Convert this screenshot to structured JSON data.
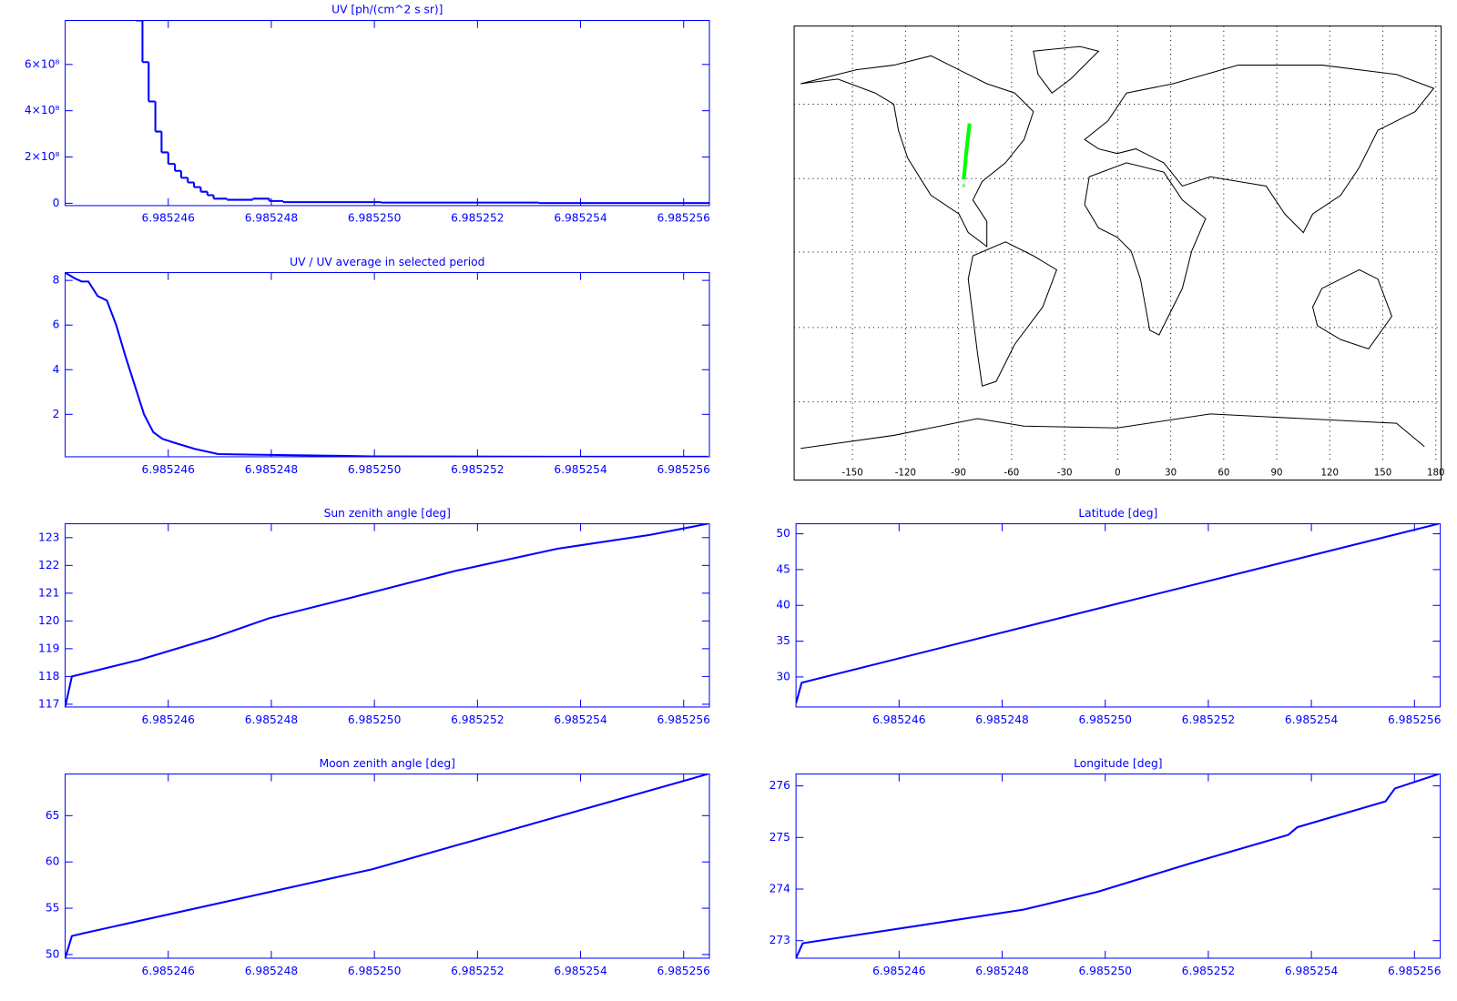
{
  "chart_data": [
    {
      "type": "step",
      "title": "UV [ph/(cm^2 s sr)]",
      "color": "#0000ff",
      "x": [
        6.98524537,
        6.9852455,
        6.98524562,
        6.98524575,
        6.98524587,
        6.985246,
        6.98524613,
        6.98524625,
        6.98524638,
        6.9852465,
        6.98524663,
        6.98524676,
        6.98524688,
        6.98524714,
        6.98524764,
        6.98524796,
        6.98524823,
        6.98525013,
        6.98525319
      ],
      "values": [
        790000000,
        610000000,
        440000000,
        310000000,
        220000000,
        170000000,
        140000000,
        110000000,
        90000000,
        70000000,
        50000000,
        35000000,
        20000000,
        15000000,
        20000000,
        10000000,
        5000000,
        3000000,
        1000000
      ],
      "xlim": [
        6.985244,
        6.9852565
      ],
      "xticks": [
        6.985246,
        6.985248,
        {
          "value": 6.98525,
          "label": "6.985250"
        },
        6.985252,
        6.985254,
        6.985256
      ],
      "ylim": [
        -10000000,
        790000000
      ],
      "yticks": [
        0,
        {
          "value": 200000000,
          "label": "2×10⁸"
        },
        {
          "value": 400000000,
          "label": "4×10⁸"
        },
        {
          "value": 600000000,
          "label": "6×10⁸"
        }
      ]
    },
    {
      "type": "line",
      "title": "UV / UV average in selected period",
      "color": "#0000ff",
      "x": [
        6.985244,
        6.98524418,
        6.98524432,
        6.98524445,
        6.98524463,
        6.98524481,
        6.98524499,
        6.98524517,
        6.98524535,
        6.98524553,
        6.98524571,
        6.98524589,
        6.98524616,
        6.98524652,
        6.98524697,
        6.98524814,
        6.98524995,
        6.98525355,
        6.98525647
      ],
      "values": [
        8.35,
        8.1,
        7.95,
        7.95,
        7.3,
        7.1,
        6.0,
        4.6,
        3.3,
        2.0,
        1.2,
        0.9,
        0.7,
        0.45,
        0.22,
        0.18,
        0.12,
        0.1,
        0.1
      ],
      "xlim": [
        6.985244,
        6.9852565
      ],
      "xticks": [
        6.985246,
        6.985248,
        {
          "value": 6.98525,
          "label": "6.985250"
        },
        6.985252,
        6.985254,
        6.985256
      ],
      "ylim": [
        0.1,
        8.35
      ],
      "yticks": [
        2,
        4,
        6,
        8
      ]
    },
    {
      "type": "map",
      "color": "#00ff00",
      "x": [
        -87.05,
        -85.6,
        -83.77
      ],
      "values": [
        29.2,
        40.2,
        51.4
      ],
      "xlim": [
        -183,
        183
      ],
      "xticks": [
        -150,
        -120,
        -90,
        -60,
        -30,
        0,
        30,
        60,
        90,
        120,
        150,
        180
      ],
      "ylim": [
        -90,
        90
      ]
    },
    {
      "type": "line",
      "title": "Sun zenith angle [deg]",
      "color": "#0000ff",
      "x": [
        6.985244,
        6.98524413,
        6.98524544,
        6.98524688,
        6.98524796,
        6.98524968,
        6.98525157,
        6.98525355,
        6.98525535,
        6.98525647
      ],
      "values": [
        116.9,
        118.0,
        118.6,
        119.4,
        120.1,
        120.9,
        121.8,
        122.6,
        123.1,
        123.5
      ],
      "xlim": [
        6.985244,
        6.9852565
      ],
      "xticks": [
        6.985246,
        6.985248,
        {
          "value": 6.98525,
          "label": "6.985250"
        },
        6.985252,
        6.985254,
        6.985256
      ],
      "ylim": [
        116.9,
        123.5
      ],
      "yticks": [
        117,
        118,
        119,
        120,
        121,
        122,
        123
      ]
    },
    {
      "type": "line",
      "title": "Latitude [deg]",
      "color": "#0000ff",
      "x": [
        6.985244,
        6.98524411,
        6.98525022,
        6.98525647
      ],
      "values": [
        26.3,
        29.2,
        40.2,
        51.4
      ],
      "xlim": [
        6.985244,
        6.9852565
      ],
      "xticks": [
        6.985246,
        6.985248,
        {
          "value": 6.98525,
          "label": "6.985250"
        },
        6.985252,
        6.985254,
        6.985256
      ],
      "ylim": [
        25.8,
        51.4
      ],
      "yticks": [
        30,
        35,
        40,
        45,
        50
      ]
    },
    {
      "type": "line",
      "title": "Moon zenith angle [deg]",
      "color": "#0000ff",
      "x": [
        6.985244,
        6.98524413,
        6.98524436,
        6.98524995,
        6.98525647
      ],
      "values": [
        49.6,
        52.0,
        52.3,
        59.2,
        69.5
      ],
      "xlim": [
        6.985244,
        6.9852565
      ],
      "xticks": [
        6.985246,
        6.985248,
        {
          "value": 6.98525,
          "label": "6.985250"
        },
        6.985252,
        6.985254,
        6.985256
      ],
      "ylim": [
        49.6,
        69.5
      ],
      "yticks": [
        50,
        55,
        60,
        65
      ]
    },
    {
      "type": "line",
      "title": "Longitude [deg]",
      "color": "#0000ff",
      "x": [
        6.985244,
        6.98524413,
        6.98524841,
        6.98524986,
        6.98525166,
        6.98525355,
        6.98525373,
        6.98525544,
        6.98525562,
        6.98525647
      ],
      "values": [
        272.66,
        272.95,
        273.6,
        273.95,
        274.5,
        275.05,
        275.2,
        275.7,
        275.95,
        276.23
      ],
      "xlim": [
        6.985244,
        6.9852565
      ],
      "xticks": [
        6.985246,
        6.985248,
        {
          "value": 6.98525,
          "label": "6.985250"
        },
        6.985252,
        6.985254,
        6.985256
      ],
      "ylim": [
        272.66,
        276.23
      ],
      "yticks": [
        273,
        274,
        275,
        276
      ]
    }
  ]
}
